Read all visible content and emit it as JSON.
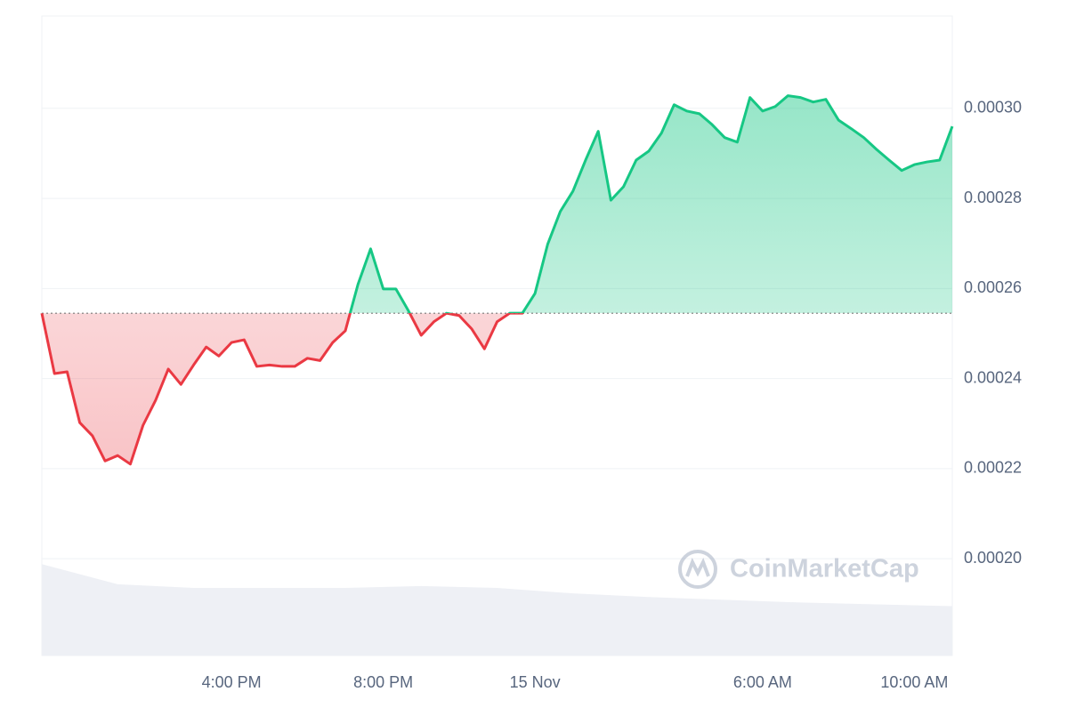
{
  "chart_data": {
    "type": "line",
    "categories": [
      null,
      null,
      null,
      null,
      null,
      null,
      null,
      null,
      null,
      null,
      null,
      null,
      null,
      null,
      null,
      "4:00 PM",
      null,
      null,
      null,
      null,
      null,
      null,
      null,
      null,
      null,
      null,
      null,
      "8:00 PM",
      null,
      null,
      null,
      null,
      null,
      null,
      null,
      null,
      null,
      null,
      null,
      "15 Nov",
      null,
      null,
      null,
      null,
      null,
      null,
      null,
      null,
      null,
      null,
      null,
      null,
      null,
      null,
      null,
      null,
      null,
      "6:00 AM",
      null,
      null,
      null,
      null,
      null,
      null,
      null,
      null,
      null,
      null,
      null,
      "10:00 AM",
      null,
      null,
      null
    ],
    "values": [
      0.0002545,
      0.0002411,
      0.0002415,
      0.0002302,
      0.0002273,
      0.0002217,
      0.0002229,
      0.000221,
      0.0002296,
      0.0002352,
      0.0002421,
      0.0002387,
      0.000243,
      0.000247,
      0.000245,
      0.000248,
      0.0002486,
      0.0002427,
      0.000243,
      0.0002427,
      0.0002427,
      0.0002445,
      0.000244,
      0.000248,
      0.0002506,
      0.0002609,
      0.0002688,
      0.0002599,
      0.0002599,
      0.000255,
      0.0002496,
      0.0002526,
      0.0002545,
      0.000254,
      0.000251,
      0.0002466,
      0.0002526,
      0.0002545,
      0.0002545,
      0.0002589,
      0.0002698,
      0.0002771,
      0.0002816,
      0.0002885,
      0.0002949,
      0.0002796,
      0.0002826,
      0.0002885,
      0.0002905,
      0.0002945,
      0.0003008,
      0.0002994,
      0.0002988,
      0.0002964,
      0.0002935,
      0.0002925,
      0.0003024,
      0.0002994,
      0.0003004,
      0.0003028,
      0.0003024,
      0.0003014,
      0.000302,
      0.0002974,
      0.0002955,
      0.0002935,
      0.0002909,
      0.0002885,
      0.0002862,
      0.0002875,
      0.0002881,
      0.0002885,
      0.000296
    ],
    "baseline": 0.0002545,
    "color_up": "#16c784",
    "color_down": "#ea3943",
    "ylim": [
      0.0001785,
      0.0003205
    ],
    "yticks": [
      {
        "value": 0.0002,
        "label": "0.00020"
      },
      {
        "value": 0.00022,
        "label": "0.00022"
      },
      {
        "value": 0.00024,
        "label": "0.00024"
      },
      {
        "value": 0.00026,
        "label": "0.00026"
      },
      {
        "value": 0.00028,
        "label": "0.00028"
      },
      {
        "value": 0.0003,
        "label": "0.00030"
      }
    ],
    "grid": true,
    "volume": {
      "values": [
        100,
        78,
        74,
        74,
        74,
        76,
        74,
        68,
        64,
        61,
        58,
        56,
        54
      ],
      "color": "#eef0f5",
      "axis": "y2"
    },
    "y2lim": [
      0,
      700
    ],
    "watermark": "CoinMarketCap"
  }
}
